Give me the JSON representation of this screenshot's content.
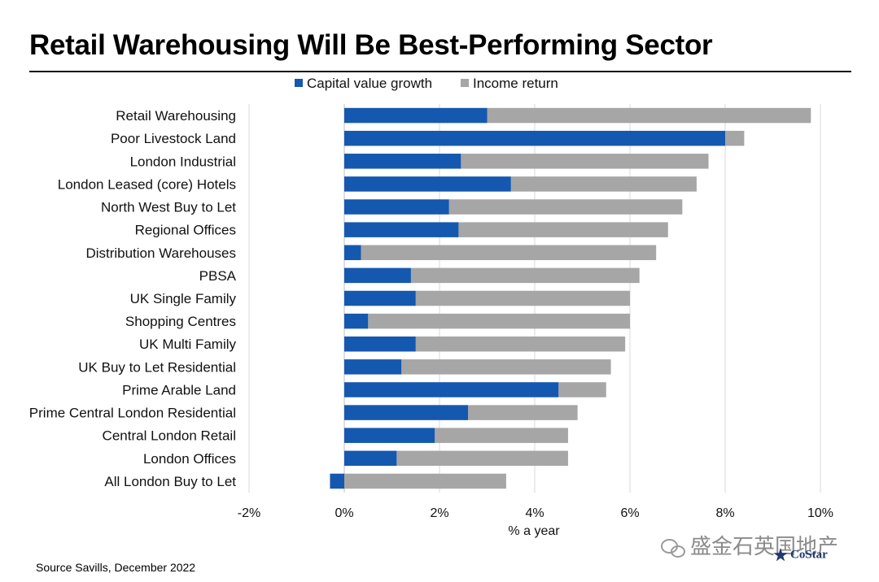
{
  "page": {
    "title": "Retail Warehousing Will Be Best-Performing Sector",
    "source": "Source Savills, December 2022",
    "watermark_text": "盛金石英国地产",
    "logo_text": "CoStar"
  },
  "colors": {
    "capital": "#1558b0",
    "income": "#a6a6a6",
    "grid": "#d9d9d9",
    "text": "#111111"
  },
  "chart_data": {
    "type": "bar",
    "orientation": "horizontal",
    "stacked": true,
    "xlabel": "% a year",
    "ylabel": "",
    "xlim": [
      -2,
      10
    ],
    "xticks": [
      -2,
      0,
      2,
      4,
      6,
      8,
      10
    ],
    "xtick_labels": [
      "-2%",
      "0%",
      "2%",
      "4%",
      "6%",
      "8%",
      "10%"
    ],
    "grid": "vertical",
    "legend_position": "top",
    "categories": [
      "Retail Warehousing",
      "Poor Livestock Land",
      "London Industrial",
      "London Leased (core) Hotels",
      "North West Buy to Let",
      "Regional Offices",
      "Distribution Warehouses",
      "PBSA",
      "UK Single Family",
      "Shopping Centres",
      "UK Multi Family",
      "UK Buy to Let Residential",
      "Prime Arable Land",
      "Prime Central London Residential",
      "Central London Retail",
      "London Offices",
      "All London Buy to Let"
    ],
    "series": [
      {
        "name": "Capital value growth",
        "values": [
          3.0,
          8.0,
          2.45,
          3.5,
          2.2,
          2.4,
          0.35,
          1.4,
          1.5,
          0.5,
          1.5,
          1.2,
          4.5,
          2.6,
          1.9,
          1.1,
          -0.3
        ]
      },
      {
        "name": "Income return",
        "values": [
          6.8,
          0.4,
          5.2,
          3.9,
          4.9,
          4.4,
          6.2,
          4.8,
          4.5,
          5.5,
          4.4,
          4.4,
          1.0,
          2.3,
          2.8,
          3.6,
          3.4
        ]
      }
    ]
  }
}
